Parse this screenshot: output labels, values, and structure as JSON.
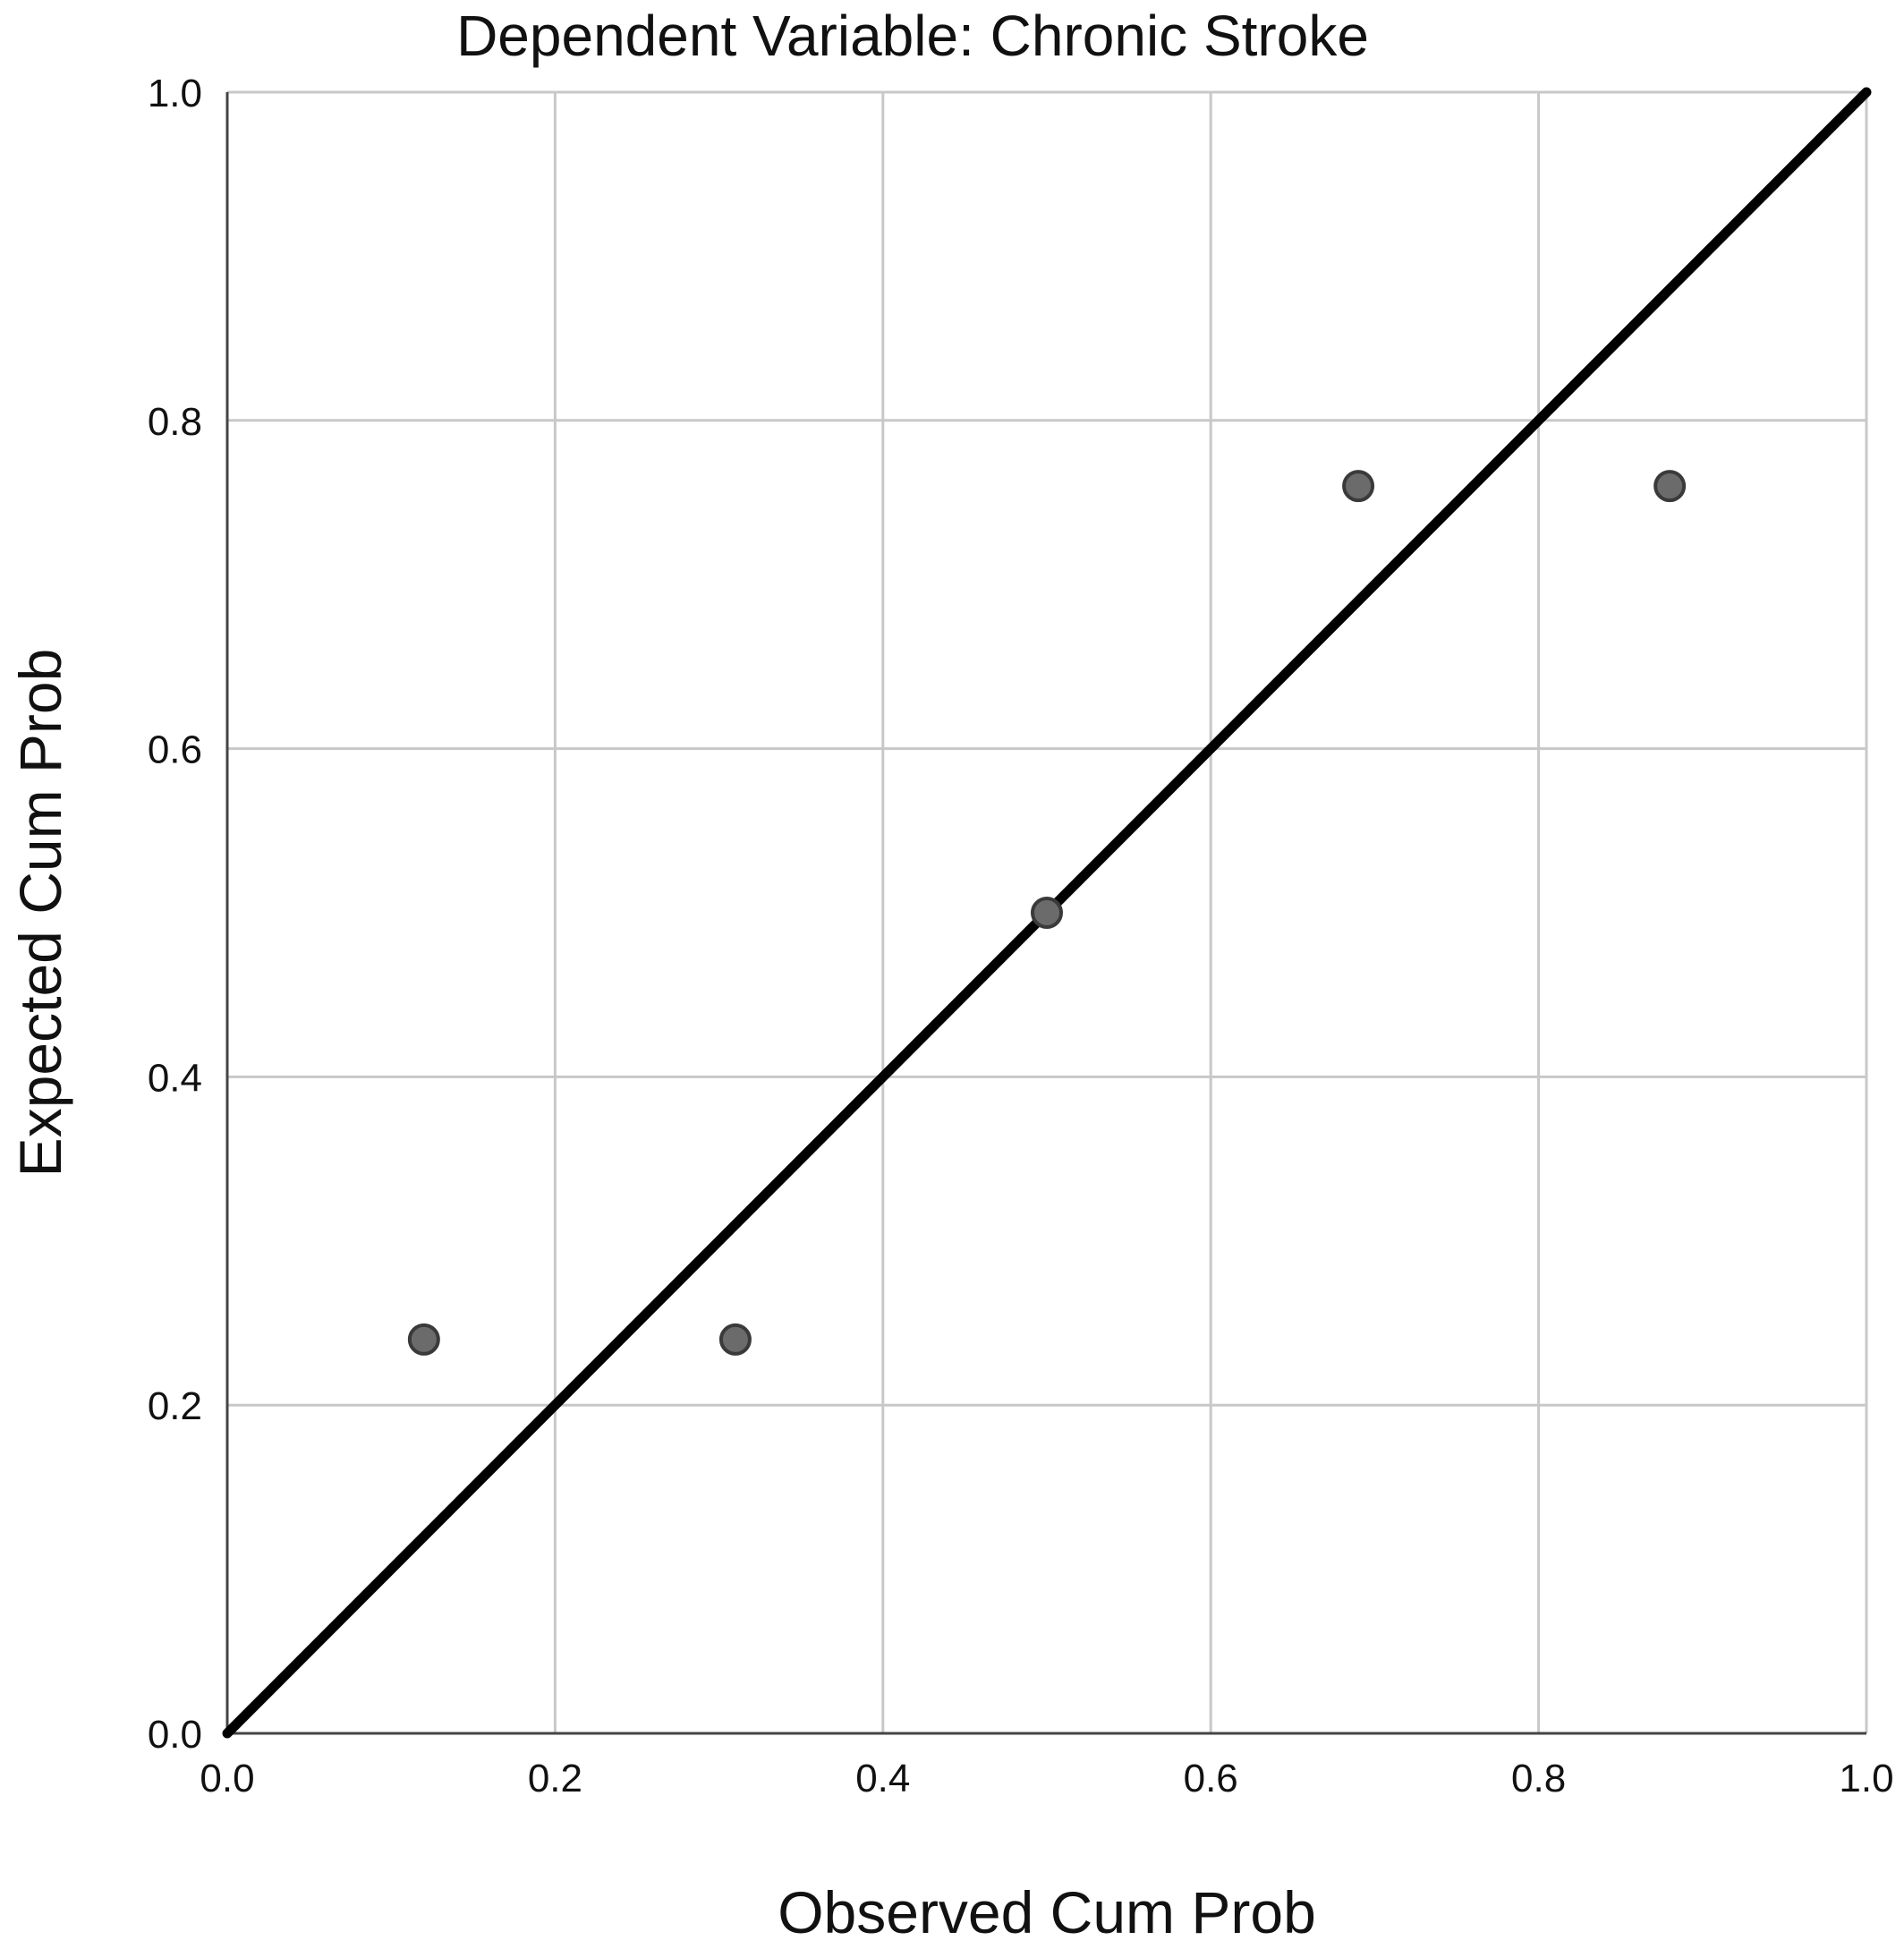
{
  "chart_data": {
    "type": "scatter",
    "title": "Dependent Variable: Chronic Stroke",
    "xlabel": "Observed Cum Prob",
    "ylabel": "Expected Cum Prob",
    "xlim": [
      0.0,
      1.0
    ],
    "ylim": [
      0.0,
      1.0
    ],
    "x_ticks": [
      "0.0",
      "0.2",
      "0.4",
      "0.6",
      "0.8",
      "1.0"
    ],
    "y_ticks": [
      "0.0",
      "0.2",
      "0.4",
      "0.6",
      "0.8",
      "1.0"
    ],
    "grid": true,
    "reference_line": {
      "from": [
        0.0,
        0.0
      ],
      "to": [
        1.0,
        1.0
      ]
    },
    "series": [
      {
        "points": [
          {
            "x": 0.12,
            "y": 0.24
          },
          {
            "x": 0.31,
            "y": 0.24
          },
          {
            "x": 0.5,
            "y": 0.5
          },
          {
            "x": 0.69,
            "y": 0.76
          },
          {
            "x": 0.88,
            "y": 0.76
          }
        ]
      }
    ],
    "colors": {
      "points": "#6b6b6b",
      "point_stroke": "#3a3a3a",
      "line": "#000000",
      "grid": "#c8c8c8",
      "axis": "#444444"
    }
  }
}
